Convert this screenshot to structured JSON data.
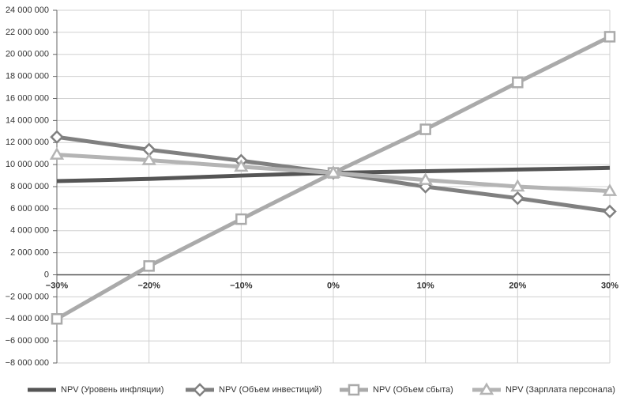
{
  "chart_data": {
    "type": "line",
    "categories": [
      "−30%",
      "−20%",
      "−10%",
      "0%",
      "10%",
      "20%",
      "30%"
    ],
    "series": [
      {
        "name": "NPV (Уровень инфляции)",
        "color": "#555555",
        "values": [
          8500000,
          8700000,
          9000000,
          9250000,
          9400000,
          9550000,
          9700000
        ]
      },
      {
        "name": "NPV (Объем инвестиций)",
        "color": "#808080",
        "marker": "diamond",
        "values": [
          12500000,
          11350000,
          10350000,
          9250000,
          8000000,
          6950000,
          5750000
        ]
      },
      {
        "name": "NPV (Объем сбыта)",
        "color": "#aaaaaa",
        "marker": "square",
        "values": [
          -4000000,
          800000,
          5050000,
          9250000,
          13200000,
          17450000,
          21600000
        ]
      },
      {
        "name": "NPV (Зарплата персонала)",
        "color": "#b4b4b4",
        "marker": "triangle",
        "values": [
          10900000,
          10400000,
          9800000,
          9250000,
          8600000,
          8000000,
          7600000
        ]
      }
    ],
    "ylim": [
      -8000000,
      24000000
    ],
    "yticks": [
      {
        "value": -8000000,
        "label": "−8 000 000"
      },
      {
        "value": -6000000,
        "label": "−6 000 000"
      },
      {
        "value": -4000000,
        "label": "−4 000 000"
      },
      {
        "value": -2000000,
        "label": "−2 000 000"
      },
      0,
      {
        "value": 2000000,
        "label": "2 000 000"
      },
      {
        "value": 4000000,
        "label": "4 000 000"
      },
      {
        "value": 6000000,
        "label": "6 000 000"
      },
      {
        "value": 8000000,
        "label": "8 000 000"
      },
      {
        "value": 10000000,
        "label": "10 000 000"
      },
      {
        "value": 12000000,
        "label": "12 000 000"
      },
      {
        "value": 14000000,
        "label": "14 000 000"
      },
      {
        "value": 16000000,
        "label": "16 000 000"
      },
      {
        "value": 18000000,
        "label": "18 000 000"
      },
      {
        "value": 20000000,
        "label": "20 000 000"
      },
      {
        "value": 22000000,
        "label": "22 000 000"
      },
      {
        "value": 24000000,
        "label": "24 000 000"
      }
    ],
    "grid": true,
    "legend": "bottom"
  }
}
